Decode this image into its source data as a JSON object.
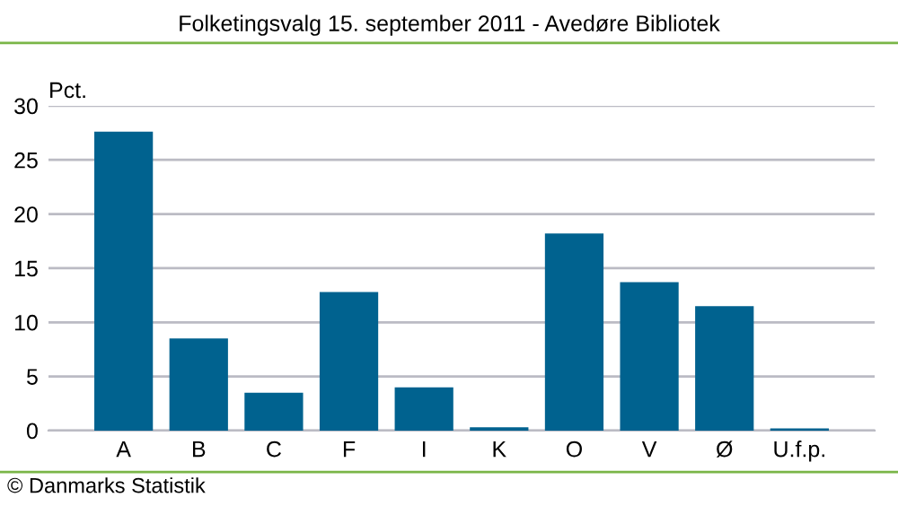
{
  "chart_data": {
    "type": "bar",
    "title": "Folketingsvalg 15. september 2011 - Avedøre Bibliotek",
    "ylabel": "Pct.",
    "categories": [
      "A",
      "B",
      "C",
      "F",
      "I",
      "K",
      "O",
      "V",
      "Ø",
      "U.f.p."
    ],
    "values": [
      27.6,
      8.5,
      3.5,
      12.8,
      4.0,
      0.3,
      18.2,
      13.7,
      11.5,
      0.2
    ],
    "color": "#00628f",
    "ylim": [
      0,
      30
    ],
    "yticks": [
      0,
      5,
      10,
      15,
      20,
      25,
      30
    ],
    "grid": "y",
    "annotations": [
      "© Danmarks Statistik"
    ]
  }
}
